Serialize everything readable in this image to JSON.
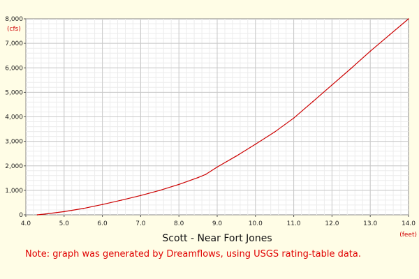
{
  "chart_data": {
    "type": "line",
    "title": "Scott - Near Fort Jones",
    "x_unit": "(feet)",
    "y_unit": "(cfs)",
    "xlim": [
      4.0,
      14.0
    ],
    "ylim": [
      0,
      8000
    ],
    "x_ticks": [
      "4.0",
      "5.0",
      "6.0",
      "7.0",
      "8.0",
      "9.0",
      "10.0",
      "11.0",
      "12.0",
      "13.0",
      "14.0"
    ],
    "y_ticks": [
      "0",
      "1,000",
      "2,000",
      "3,000",
      "4,000",
      "5,000",
      "6,000",
      "7,000",
      "8,000"
    ],
    "grid": true,
    "line_color": "#cc0000",
    "series": [
      {
        "x": [
          4.3,
          4.5,
          5.0,
          5.5,
          6.0,
          6.5,
          7.0,
          7.5,
          8.0,
          8.5,
          8.7,
          9.0,
          9.5,
          10.0,
          10.5,
          11.0,
          11.5,
          12.0,
          12.5,
          13.0,
          13.5,
          14.0
        ],
        "y": [
          0,
          30,
          130,
          260,
          420,
          600,
          790,
          1000,
          1240,
          1520,
          1650,
          1950,
          2400,
          2880,
          3380,
          3950,
          4620,
          5300,
          5980,
          6680,
          7340,
          8000
        ]
      }
    ]
  },
  "note": "Note: graph was generated by Dreamflows, using USGS rating-table data."
}
